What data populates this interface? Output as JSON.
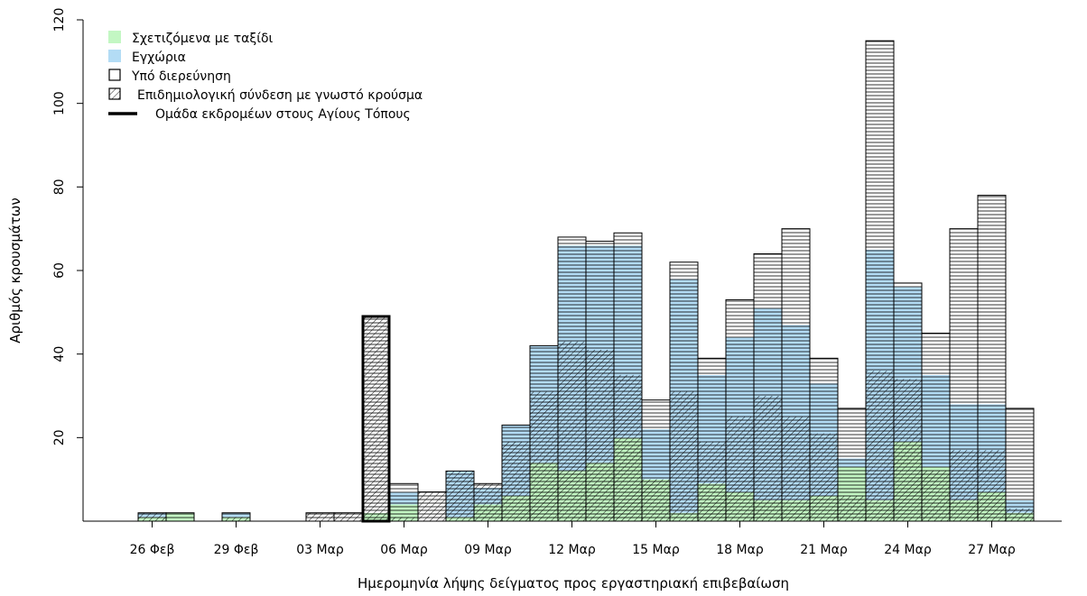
{
  "chart_data": {
    "type": "bar",
    "stacked": true,
    "xlabel": "Ημερομηνία λήψης δείγματος προς εργαστηριακή επιβεβαίωση",
    "ylabel": "Αριθμός κρουσμάτων",
    "ylim": [
      0,
      120
    ],
    "yticks": [
      20,
      40,
      60,
      80,
      100,
      120
    ],
    "tick_dates": [
      "26 Φεβ",
      "29 Φεβ",
      "03 Μαρ",
      "06 Μαρ",
      "09 Μαρ",
      "12 Μαρ",
      "15 Μαρ",
      "18 Μαρ",
      "21 Μαρ",
      "24 Μαρ",
      "27 Μαρ"
    ],
    "categories": [
      "26 Φεβ",
      "27 Φεβ",
      "28 Φεβ",
      "29 Φεβ",
      "01 Μαρ",
      "02 Μαρ",
      "03 Μαρ",
      "04 Μαρ",
      "05 Μαρ",
      "06 Μαρ",
      "07 Μαρ",
      "08 Μαρ",
      "09 Μαρ",
      "10 Μαρ",
      "11 Μαρ",
      "12 Μαρ",
      "13 Μαρ",
      "14 Μαρ",
      "15 Μαρ",
      "16 Μαρ",
      "17 Μαρ",
      "18 Μαρ",
      "19 Μαρ",
      "20 Μαρ",
      "21 Μαρ",
      "22 Μαρ",
      "23 Μαρ",
      "24 Μαρ",
      "25 Μαρ",
      "26 Μαρ",
      "27 Μαρ",
      "28 Μαρ"
    ],
    "series": [
      {
        "name": "Σχετιζόμενα με ταξίδι",
        "values": [
          1,
          2,
          0,
          1,
          0,
          0,
          0,
          0,
          2,
          4,
          0,
          1,
          4,
          6,
          14,
          12,
          14,
          20,
          10,
          2,
          9,
          7,
          5,
          5,
          6,
          13,
          5,
          19,
          13,
          5,
          7,
          2
        ]
      },
      {
        "name": "Εγχώρια",
        "values": [
          1,
          0,
          0,
          1,
          0,
          0,
          0,
          0,
          0,
          3,
          0,
          11,
          4,
          17,
          28,
          54,
          52,
          46,
          12,
          56,
          26,
          37,
          46,
          42,
          27,
          2,
          60,
          37,
          22,
          23,
          21,
          3
        ]
      },
      {
        "name": "Υπό διερεύνηση",
        "values": [
          0,
          0,
          0,
          0,
          0,
          0,
          2,
          2,
          47,
          2,
          7,
          0,
          1,
          0,
          0,
          2,
          1,
          3,
          7,
          4,
          4,
          9,
          13,
          23,
          6,
          12,
          50,
          1,
          10,
          42,
          50,
          22
        ]
      }
    ],
    "hatched_epi_link": [
      2,
      0,
      0,
      1,
      0,
      0,
      2,
      2,
      49,
      1,
      7,
      12,
      9,
      19,
      31,
      43,
      41,
      35,
      10,
      31,
      19,
      25,
      30,
      25,
      21,
      6,
      36,
      34,
      12,
      17,
      17,
      3
    ],
    "pilgrim_group_outline": [
      0,
      0,
      0,
      0,
      0,
      0,
      0,
      0,
      49,
      0,
      0,
      0,
      0,
      0,
      0,
      0,
      0,
      0,
      0,
      0,
      0,
      0,
      0,
      0,
      0,
      0,
      0,
      0,
      0,
      0,
      0,
      0
    ],
    "legend": {
      "position": "top-left",
      "items": [
        {
          "label": "Σχετιζόμενα με ταξίδι",
          "symbol": "green-square"
        },
        {
          "label": "Εγχώρια",
          "symbol": "blue-square"
        },
        {
          "label": "Υπό διερεύνηση",
          "symbol": "open-square"
        },
        {
          "label": "Επιδημιολογική σύνδεση με γνωστό κρούσμα",
          "symbol": "hatched-square"
        },
        {
          "label": "Ομάδα εκδρομέων στους Αγίους Τόπους",
          "symbol": "thick-line"
        }
      ]
    },
    "colors": {
      "travel": "#c3f7c3",
      "domestic": "#b3dcf5",
      "investigation": "#ffffff",
      "line": "#000000"
    }
  }
}
